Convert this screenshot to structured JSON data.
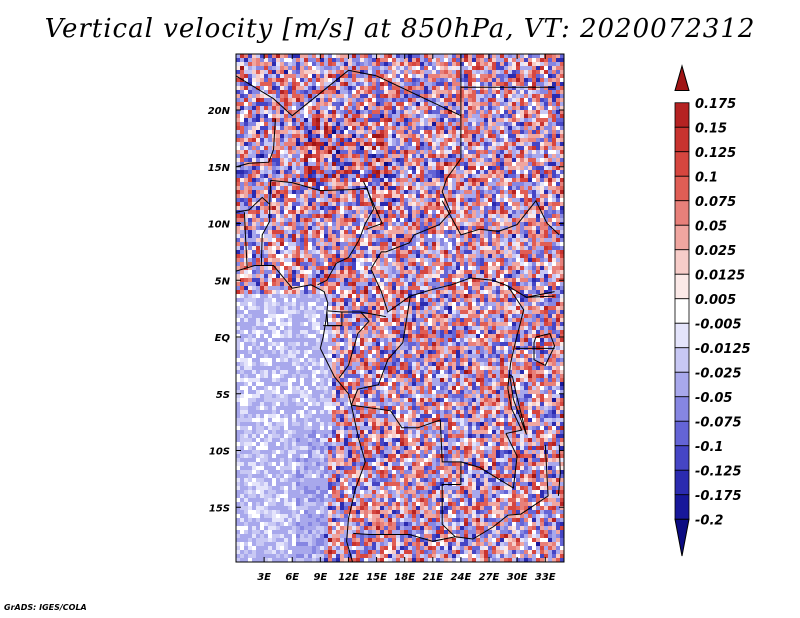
{
  "title": "Vertical velocity [m/s] at 850hPa, VT: 2020072312",
  "credit": "GrADS: IGES/COLA",
  "chart_data": {
    "type": "heatmap",
    "variable": "Vertical velocity",
    "units": "m/s",
    "level": "850hPa",
    "valid_time": "2020072312",
    "lon_range": [
      0,
      35
    ],
    "lat_range": [
      -20,
      25
    ],
    "x_ticks": [
      "3E",
      "6E",
      "9E",
      "12E",
      "15E",
      "18E",
      "21E",
      "24E",
      "27E",
      "30E",
      "33E"
    ],
    "x_tick_values": [
      3,
      6,
      9,
      12,
      15,
      18,
      21,
      24,
      27,
      30,
      33
    ],
    "y_ticks": [
      "20N",
      "15N",
      "10N",
      "5N",
      "EQ",
      "5S",
      "10S",
      "15S"
    ],
    "y_tick_values": [
      20,
      15,
      10,
      5,
      0,
      -5,
      -10,
      -15
    ],
    "colorbar": {
      "labels": [
        "0.175",
        "0.15",
        "0.125",
        "0.1",
        "0.075",
        "0.05",
        "0.025",
        "0.0125",
        "0.005",
        "-0.005",
        "-0.0125",
        "-0.025",
        "-0.05",
        "-0.075",
        "-0.1",
        "-0.125",
        "-0.175",
        "-0.2"
      ],
      "colors": [
        "#a01515",
        "#b52222",
        "#c8332f",
        "#d6463f",
        "#e05e55",
        "#e8807a",
        "#f0a6a0",
        "#f7cdc9",
        "#fbe9e7",
        "#ffffff",
        "#e4e4fb",
        "#c8c8f4",
        "#a8a8ec",
        "#8686e2",
        "#6464d6",
        "#4545c5",
        "#2b2bb0",
        "#17179a",
        "#0b0b82"
      ],
      "extend": "both"
    }
  }
}
